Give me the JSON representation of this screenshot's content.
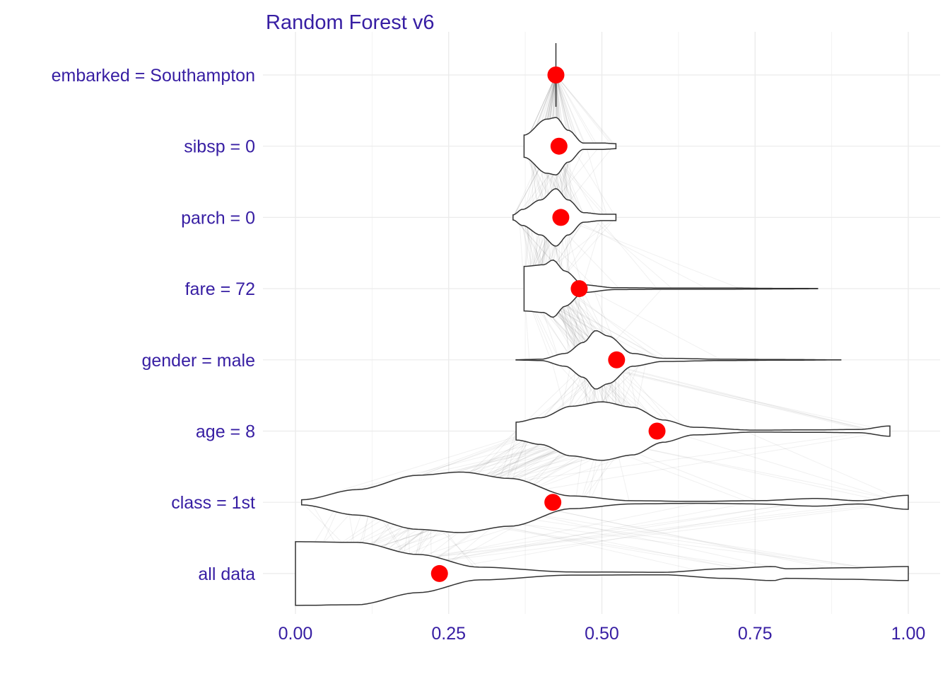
{
  "chart_data": {
    "type": "violin",
    "title": "Random Forest v6",
    "xlabel": "",
    "ylabel": "",
    "xlim": [
      0,
      1
    ],
    "x_ticks": [
      "0.00",
      "0.25",
      "0.50",
      "0.75",
      "1.00"
    ],
    "x_tick_values": [
      0,
      0.25,
      0.5,
      0.75,
      1.0
    ],
    "grid": "on",
    "colors": {
      "text": "#371EA3",
      "point": "#FF0000",
      "violin_stroke": "#333333",
      "grid": "#EBEBEB"
    },
    "rows": [
      {
        "label": "embarked = Southampton",
        "mean": 0.425,
        "range": [
          0.425,
          0.425
        ],
        "shape": [
          [
            0.425,
            1
          ]
        ]
      },
      {
        "label": "sibsp = 0",
        "mean": 0.43,
        "range": [
          0.373,
          0.523
        ],
        "shape": [
          [
            0.373,
            0.35
          ],
          [
            0.41,
            0.85
          ],
          [
            0.425,
            0.9
          ],
          [
            0.445,
            0.5
          ],
          [
            0.47,
            0.1
          ],
          [
            0.5,
            0.1
          ],
          [
            0.523,
            0.08
          ]
        ]
      },
      {
        "label": "parch = 0",
        "mean": 0.433,
        "range": [
          0.355,
          0.523
        ],
        "shape": [
          [
            0.355,
            0.08
          ],
          [
            0.37,
            0.25
          ],
          [
            0.4,
            0.55
          ],
          [
            0.425,
            0.9
          ],
          [
            0.445,
            0.55
          ],
          [
            0.47,
            0.15
          ],
          [
            0.5,
            0.1
          ],
          [
            0.523,
            0.1
          ]
        ]
      },
      {
        "label": "fare = 72",
        "mean": 0.463,
        "range": [
          0.373,
          0.852
        ],
        "shape": [
          [
            0.373,
            0.7
          ],
          [
            0.405,
            0.75
          ],
          [
            0.42,
            0.9
          ],
          [
            0.44,
            0.55
          ],
          [
            0.47,
            0.12
          ],
          [
            0.52,
            0.03
          ],
          [
            0.6,
            0.02
          ],
          [
            0.7,
            0.02
          ],
          [
            0.78,
            0.01
          ],
          [
            0.852,
            0.005
          ]
        ]
      },
      {
        "label": "gender = male",
        "mean": 0.524,
        "range": [
          0.36,
          0.89
        ],
        "shape": [
          [
            0.36,
            0.005
          ],
          [
            0.4,
            0.02
          ],
          [
            0.44,
            0.2
          ],
          [
            0.47,
            0.55
          ],
          [
            0.49,
            0.92
          ],
          [
            0.51,
            0.75
          ],
          [
            0.55,
            0.2
          ],
          [
            0.6,
            0.05
          ],
          [
            0.7,
            0.02
          ],
          [
            0.8,
            0.01
          ],
          [
            0.89,
            0.002
          ]
        ]
      },
      {
        "label": "age = 8",
        "mean": 0.59,
        "range": [
          0.36,
          0.97
        ],
        "shape": [
          [
            0.36,
            0.28
          ],
          [
            0.4,
            0.42
          ],
          [
            0.45,
            0.78
          ],
          [
            0.5,
            0.92
          ],
          [
            0.55,
            0.75
          ],
          [
            0.6,
            0.35
          ],
          [
            0.65,
            0.12
          ],
          [
            0.75,
            0.03
          ],
          [
            0.85,
            0.04
          ],
          [
            0.92,
            0.05
          ],
          [
            0.97,
            0.16
          ]
        ]
      },
      {
        "label": "class = 1st",
        "mean": 0.42,
        "range": [
          0.01,
          1.0
        ],
        "shape": [
          [
            0.01,
            0.08
          ],
          [
            0.1,
            0.4
          ],
          [
            0.2,
            0.85
          ],
          [
            0.27,
            0.95
          ],
          [
            0.35,
            0.75
          ],
          [
            0.45,
            0.2
          ],
          [
            0.55,
            0.05
          ],
          [
            0.65,
            0.03
          ],
          [
            0.75,
            0.05
          ],
          [
            0.85,
            0.12
          ],
          [
            0.92,
            0.05
          ],
          [
            1.0,
            0.22
          ]
        ]
      },
      {
        "label": "all data",
        "mean": 0.235,
        "range": [
          0.0,
          1.0
        ],
        "shape": [
          [
            0.0,
            1.0
          ],
          [
            0.1,
            0.98
          ],
          [
            0.2,
            0.6
          ],
          [
            0.3,
            0.2
          ],
          [
            0.45,
            0.05
          ],
          [
            0.6,
            0.04
          ],
          [
            0.7,
            0.15
          ],
          [
            0.78,
            0.22
          ],
          [
            0.8,
            0.15
          ],
          [
            0.9,
            0.18
          ],
          [
            1.0,
            0.22
          ]
        ]
      }
    ]
  }
}
